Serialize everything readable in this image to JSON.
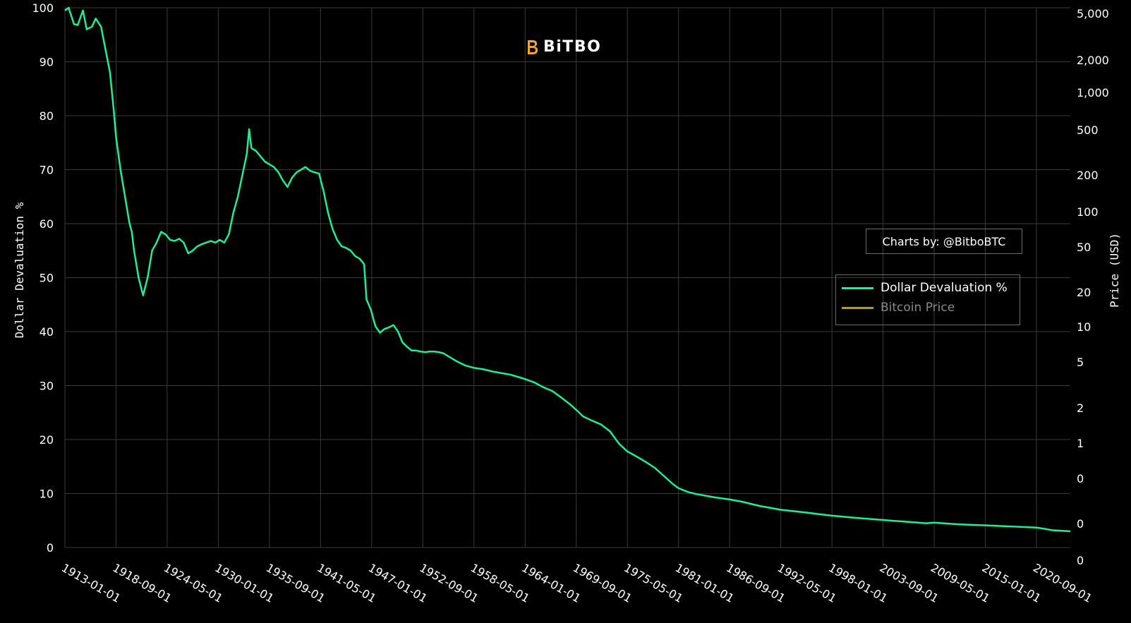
{
  "branding": {
    "logo_text": "BiTBO",
    "credit": "Charts by: @BitboBTC"
  },
  "colors": {
    "background": "#000000",
    "grid": "#3a3a3a",
    "devaluation": "#19f09a",
    "bitcoin": "#b8a000",
    "logo": "#f5a623"
  },
  "legend": {
    "items": [
      {
        "label": "Dollar Devaluation %",
        "color": "#19f09a",
        "muted": false
      },
      {
        "label": "Bitcoin Price",
        "color": "#b8a000",
        "muted": true
      }
    ]
  },
  "chart_data": {
    "type": "line",
    "title": "",
    "ylabel": "Dollar Devaluation %",
    "y2label": "Price (USD)",
    "ylim": [
      0,
      100
    ],
    "y_ticks": [
      0,
      10,
      20,
      30,
      40,
      50,
      60,
      70,
      80,
      90,
      100
    ],
    "y2_tick_labels": [
      "5,000",
      "2,000",
      "1,000",
      "500",
      "200",
      "100",
      "50",
      "20",
      "10",
      "5",
      "2",
      "1",
      "0",
      "0",
      "0"
    ],
    "x_tick_labels": [
      "1913-01-01",
      "1918-09-01",
      "1924-05-01",
      "1930-01-01",
      "1935-09-01",
      "1941-05-01",
      "1947-01-01",
      "1952-09-01",
      "1958-05-01",
      "1964-01-01",
      "1969-09-01",
      "1975-05-01",
      "1981-01-01",
      "1986-09-01",
      "1992-05-01",
      "1998-01-01",
      "2003-09-01",
      "2009-05-01",
      "2015-01-01",
      "2020-09-01"
    ],
    "x_range": [
      "1913-01-01",
      "2024-06-01"
    ],
    "grid": true,
    "legend_position": "right",
    "series": [
      {
        "name": "Dollar Devaluation %",
        "color": "#19f09a",
        "points": [
          [
            "1913-01-01",
            99.5
          ],
          [
            "1913-06-01",
            100
          ],
          [
            "1914-01-01",
            97.0
          ],
          [
            "1914-06-01",
            96.8
          ],
          [
            "1915-01-01",
            99.5
          ],
          [
            "1915-06-01",
            96.0
          ],
          [
            "1916-01-01",
            96.5
          ],
          [
            "1916-06-01",
            98.0
          ],
          [
            "1917-01-01",
            96.5
          ],
          [
            "1917-06-01",
            93.0
          ],
          [
            "1918-01-01",
            88.0
          ],
          [
            "1918-06-01",
            81.0
          ],
          [
            "1918-09-01",
            76.0
          ],
          [
            "1919-03-01",
            70.0
          ],
          [
            "1919-09-01",
            65.0
          ],
          [
            "1920-03-01",
            60.0
          ],
          [
            "1920-06-01",
            58.5
          ],
          [
            "1920-09-01",
            55.0
          ],
          [
            "1921-03-01",
            50.0
          ],
          [
            "1921-09-01",
            46.7
          ],
          [
            "1922-03-01",
            50.0
          ],
          [
            "1922-09-01",
            55.0
          ],
          [
            "1923-03-01",
            56.5
          ],
          [
            "1923-09-01",
            58.5
          ],
          [
            "1924-03-01",
            58.0
          ],
          [
            "1924-09-01",
            57.0
          ],
          [
            "1925-03-01",
            56.8
          ],
          [
            "1925-09-01",
            57.2
          ],
          [
            "1926-03-01",
            56.5
          ],
          [
            "1926-09-01",
            54.5
          ],
          [
            "1927-03-01",
            55.0
          ],
          [
            "1927-09-01",
            55.8
          ],
          [
            "1928-03-01",
            56.2
          ],
          [
            "1928-09-01",
            56.5
          ],
          [
            "1929-03-01",
            56.8
          ],
          [
            "1929-09-01",
            56.5
          ],
          [
            "1930-03-01",
            57.0
          ],
          [
            "1930-09-01",
            56.5
          ],
          [
            "1931-03-01",
            58.0
          ],
          [
            "1931-09-01",
            62.0
          ],
          [
            "1932-03-01",
            65.0
          ],
          [
            "1932-09-01",
            69.0
          ],
          [
            "1933-03-01",
            73.0
          ],
          [
            "1933-06-01",
            77.5
          ],
          [
            "1933-09-01",
            74.0
          ],
          [
            "1934-03-01",
            73.5
          ],
          [
            "1934-09-01",
            72.5
          ],
          [
            "1935-03-01",
            71.5
          ],
          [
            "1935-09-01",
            71.0
          ],
          [
            "1936-03-01",
            70.5
          ],
          [
            "1936-09-01",
            69.5
          ],
          [
            "1937-03-01",
            68.0
          ],
          [
            "1937-09-01",
            66.8
          ],
          [
            "1938-03-01",
            68.5
          ],
          [
            "1938-09-01",
            69.5
          ],
          [
            "1939-03-01",
            70.0
          ],
          [
            "1939-09-01",
            70.5
          ],
          [
            "1940-03-01",
            69.8
          ],
          [
            "1940-09-01",
            69.5
          ],
          [
            "1941-03-01",
            69.3
          ],
          [
            "1941-09-01",
            66.0
          ],
          [
            "1942-03-01",
            62.0
          ],
          [
            "1942-09-01",
            59.0
          ],
          [
            "1943-03-01",
            57.0
          ],
          [
            "1943-09-01",
            55.8
          ],
          [
            "1944-03-01",
            55.5
          ],
          [
            "1944-09-01",
            55.0
          ],
          [
            "1945-03-01",
            54.0
          ],
          [
            "1945-09-01",
            53.5
          ],
          [
            "1946-03-01",
            52.5
          ],
          [
            "1946-06-01",
            46.0
          ],
          [
            "1946-12-01",
            44.0
          ],
          [
            "1947-06-01",
            41.0
          ],
          [
            "1947-12-01",
            39.8
          ],
          [
            "1948-06-01",
            40.5
          ],
          [
            "1948-12-01",
            40.8
          ],
          [
            "1949-06-01",
            41.2
          ],
          [
            "1949-12-01",
            40.0
          ],
          [
            "1950-06-01",
            38.0
          ],
          [
            "1950-12-01",
            37.2
          ],
          [
            "1951-06-01",
            36.5
          ],
          [
            "1951-12-01",
            36.5
          ],
          [
            "1952-06-01",
            36.3
          ],
          [
            "1952-12-01",
            36.2
          ],
          [
            "1953-06-01",
            36.3
          ],
          [
            "1953-12-01",
            36.3
          ],
          [
            "1954-06-01",
            36.2
          ],
          [
            "1954-12-01",
            36.0
          ],
          [
            "1955-06-01",
            35.5
          ],
          [
            "1956-06-01",
            34.5
          ],
          [
            "1957-06-01",
            33.7
          ],
          [
            "1958-05-01",
            33.3
          ],
          [
            "1959-06-01",
            33.0
          ],
          [
            "1960-06-01",
            32.6
          ],
          [
            "1961-06-01",
            32.3
          ],
          [
            "1962-06-01",
            32.0
          ],
          [
            "1963-06-01",
            31.5
          ],
          [
            "1964-01-01",
            31.2
          ],
          [
            "1965-01-01",
            30.6
          ],
          [
            "1966-01-01",
            29.7
          ],
          [
            "1967-01-01",
            29.0
          ],
          [
            "1968-01-01",
            27.8
          ],
          [
            "1969-01-01",
            26.5
          ],
          [
            "1969-09-01",
            25.5
          ],
          [
            "1970-06-01",
            24.3
          ],
          [
            "1971-06-01",
            23.5
          ],
          [
            "1972-06-01",
            22.8
          ],
          [
            "1973-06-01",
            21.5
          ],
          [
            "1974-06-01",
            19.2
          ],
          [
            "1975-05-01",
            17.8
          ],
          [
            "1976-06-01",
            16.8
          ],
          [
            "1977-06-01",
            15.8
          ],
          [
            "1978-06-01",
            14.7
          ],
          [
            "1979-06-01",
            13.2
          ],
          [
            "1980-06-01",
            11.7
          ],
          [
            "1981-01-01",
            11.0
          ],
          [
            "1982-01-01",
            10.3
          ],
          [
            "1983-01-01",
            9.9
          ],
          [
            "1984-01-01",
            9.6
          ],
          [
            "1985-01-01",
            9.3
          ],
          [
            "1986-09-01",
            8.9
          ],
          [
            "1988-01-01",
            8.5
          ],
          [
            "1990-01-01",
            7.7
          ],
          [
            "1992-05-01",
            7.0
          ],
          [
            "1995-01-01",
            6.5
          ],
          [
            "1998-01-01",
            5.9
          ],
          [
            "2000-01-01",
            5.6
          ],
          [
            "2001-06-01",
            5.4
          ],
          [
            "2003-09-01",
            5.1
          ],
          [
            "2006-01-01",
            4.8
          ],
          [
            "2008-06-01",
            4.5
          ],
          [
            "2009-05-01",
            4.6
          ],
          [
            "2012-01-01",
            4.3
          ],
          [
            "2015-01-01",
            4.1
          ],
          [
            "2018-01-01",
            3.9
          ],
          [
            "2020-09-01",
            3.7
          ],
          [
            "2021-06-01",
            3.5
          ],
          [
            "2022-06-01",
            3.2
          ],
          [
            "2023-06-01",
            3.1
          ],
          [
            "2024-06-01",
            3.0
          ]
        ]
      },
      {
        "name": "Bitcoin Price",
        "color": "#b8a000",
        "points": []
      }
    ]
  }
}
